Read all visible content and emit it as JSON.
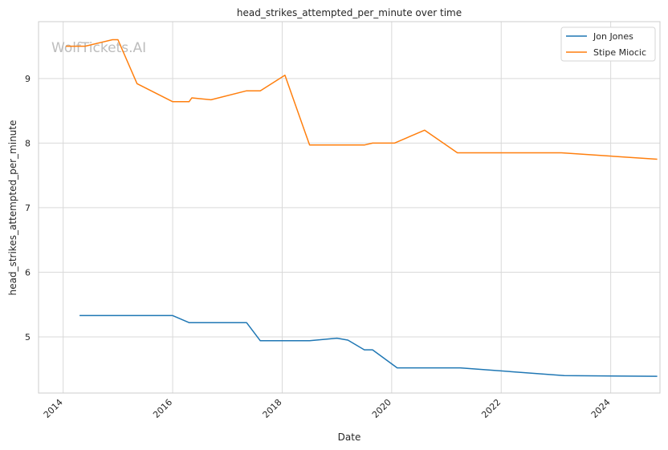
{
  "chart_data": {
    "type": "line",
    "title": "head_strikes_attempted_per_minute over time",
    "xlabel": "Date",
    "ylabel": "head_strikes_attempted_per_minute",
    "watermark": "WolfTickets.AI",
    "x_ticks": [
      "2014",
      "2016",
      "2018",
      "2020",
      "2022",
      "2024"
    ],
    "y_ticks": [
      "5",
      "6",
      "7",
      "8",
      "9"
    ],
    "xlim": [
      2013.55,
      2024.9
    ],
    "ylim": [
      4.13,
      9.88
    ],
    "grid": true,
    "legend_position": "top-right",
    "series": [
      {
        "name": "Jon Jones",
        "color": "#1f77b4",
        "points": [
          [
            2014.3,
            5.33
          ],
          [
            2016.0,
            5.33
          ],
          [
            2016.3,
            5.22
          ],
          [
            2017.35,
            5.22
          ],
          [
            2017.6,
            4.94
          ],
          [
            2018.5,
            4.94
          ],
          [
            2019.0,
            4.98
          ],
          [
            2019.2,
            4.95
          ],
          [
            2019.5,
            4.8
          ],
          [
            2019.65,
            4.8
          ],
          [
            2020.1,
            4.52
          ],
          [
            2021.25,
            4.52
          ],
          [
            2023.15,
            4.4
          ],
          [
            2024.85,
            4.39
          ]
        ]
      },
      {
        "name": "Stipe Miocic",
        "color": "#ff7f0e",
        "points": [
          [
            2014.05,
            9.5
          ],
          [
            2014.4,
            9.5
          ],
          [
            2014.9,
            9.6
          ],
          [
            2015.0,
            9.6
          ],
          [
            2015.35,
            8.92
          ],
          [
            2016.0,
            8.64
          ],
          [
            2016.3,
            8.64
          ],
          [
            2016.35,
            8.7
          ],
          [
            2016.7,
            8.67
          ],
          [
            2017.35,
            8.81
          ],
          [
            2017.6,
            8.81
          ],
          [
            2018.05,
            9.05
          ],
          [
            2018.5,
            7.97
          ],
          [
            2019.5,
            7.97
          ],
          [
            2019.65,
            8.0
          ],
          [
            2020.05,
            8.0
          ],
          [
            2020.6,
            8.2
          ],
          [
            2021.2,
            7.85
          ],
          [
            2023.1,
            7.85
          ],
          [
            2024.85,
            7.75
          ]
        ]
      }
    ]
  }
}
